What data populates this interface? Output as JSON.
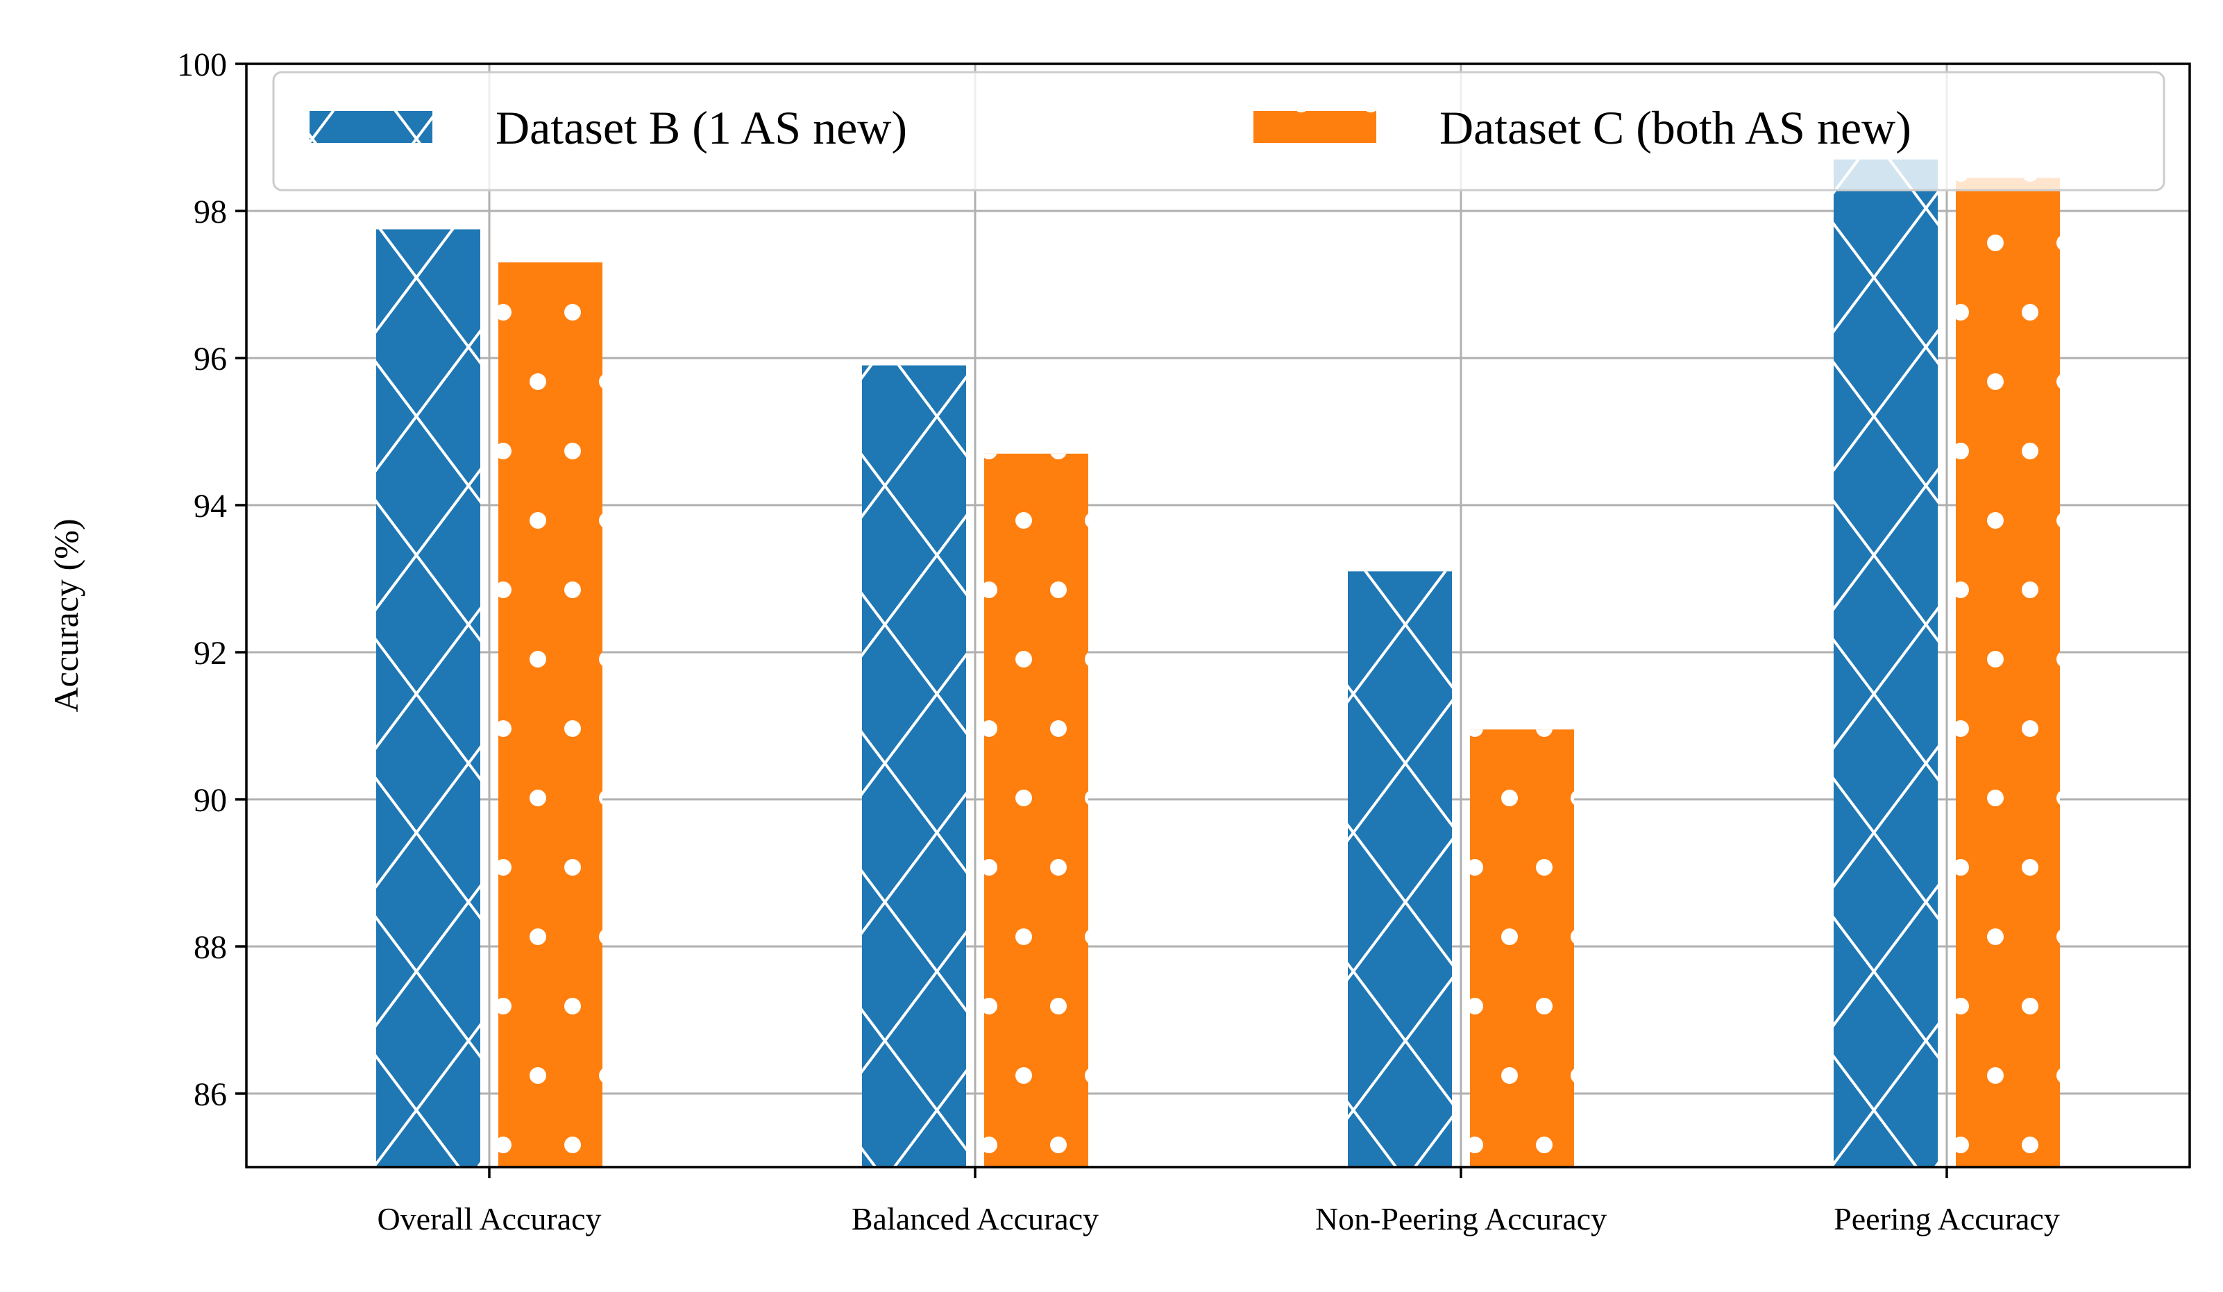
{
  "chart_data": {
    "type": "bar",
    "title": "",
    "xlabel": "",
    "ylabel": "Accuracy (%)",
    "ylim": [
      85,
      100
    ],
    "yticks": [
      86,
      88,
      90,
      92,
      94,
      96,
      98,
      100
    ],
    "grid": true,
    "legend_position": "top",
    "categories": [
      "Overall Accuracy",
      "Balanced Accuracy",
      "Non-Peering Accuracy",
      "Peering Accuracy"
    ],
    "series": [
      {
        "name": "Dataset B (1 AS new)",
        "color": "#1f77b4",
        "hatch": "cross-diagonal",
        "values": [
          97.75,
          95.9,
          93.1,
          98.7
        ]
      },
      {
        "name": "Dataset C (both AS new)",
        "color": "#ff7f0e",
        "hatch": "dots",
        "values": [
          97.3,
          94.7,
          90.95,
          98.45
        ]
      }
    ]
  }
}
